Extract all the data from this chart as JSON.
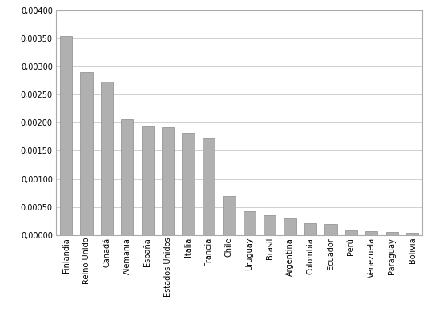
{
  "categories": [
    "Finlandia",
    "Reino Unido",
    "Canadá",
    "Alemania",
    "España",
    "Estados Unidos",
    "Italia",
    "Francia",
    "Chile",
    "Uruguay",
    "Brasil",
    "Argentina",
    "Colombia",
    "Ecuador",
    "Perú",
    "Venezuela",
    "Paraguay",
    "Bolivia"
  ],
  "values": [
    0.00354,
    0.0029,
    0.00273,
    0.00206,
    0.00194,
    0.00192,
    0.00182,
    0.00172,
    0.00069,
    0.00043,
    0.00035,
    0.0003,
    0.00022,
    0.0002,
    9e-05,
    7e-05,
    6e-05,
    4e-05
  ],
  "bar_color": "#b0b0b0",
  "bar_edgecolor": "#888888",
  "ylim": [
    0,
    0.004
  ],
  "yticks": [
    0.0,
    0.0005,
    0.001,
    0.0015,
    0.002,
    0.0025,
    0.003,
    0.0035,
    0.004
  ],
  "background_color": "#ffffff",
  "grid_color": "#d0d0d0",
  "border_color": "#aaaaaa",
  "tick_fontsize": 7,
  "label_fontsize": 7,
  "figure_width": 5.38,
  "figure_height": 4.2,
  "dpi": 100
}
